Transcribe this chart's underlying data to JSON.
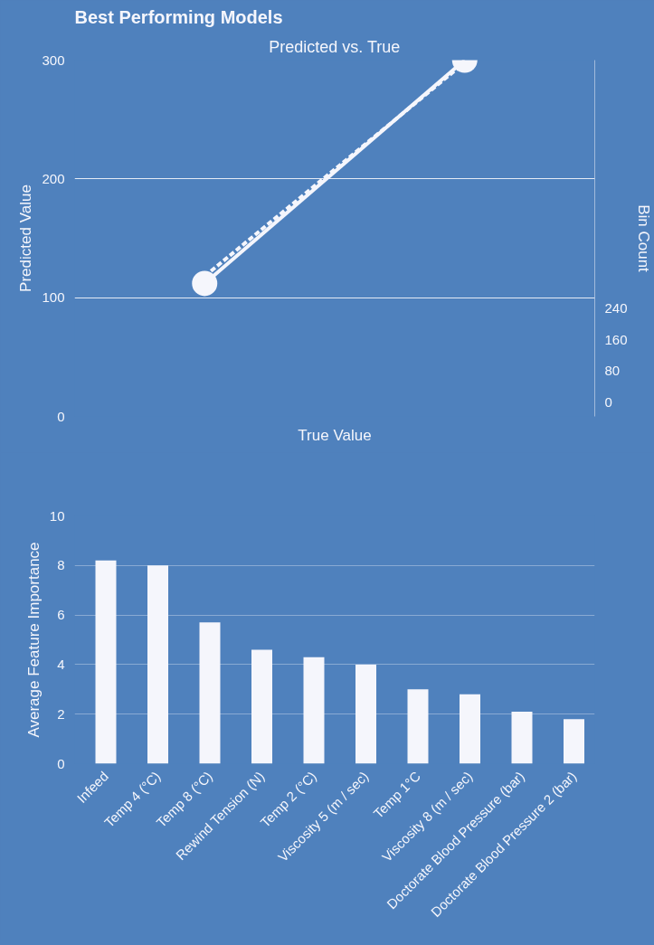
{
  "chart_data": [
    {
      "type": "line",
      "title": "Best Performing Models",
      "subtitle": "Predicted vs. True",
      "xlabel": "True Value",
      "ylabel": "Predicted Value",
      "y2label": "Bin Count",
      "categories": [
        null,
        null
      ],
      "series": [
        {
          "color": "#f5f6fc",
          "values": [
            118,
            298
          ],
          "line_style": "dashed",
          "marker": "none"
        },
        {
          "color": "#f5f6fc",
          "values": [
            112,
            300
          ],
          "line_style": "solid",
          "marker": "circle"
        }
      ],
      "ylim": [
        0,
        300
      ],
      "yticks": [
        0,
        100,
        200,
        300
      ],
      "y2lim": [
        -36,
        873
      ],
      "y2ticks": [
        0,
        80,
        160,
        240
      ],
      "grid": "y",
      "tick_labels": "y"
    },
    {
      "type": "bar",
      "ylabel": "Average Feature Importance",
      "categories": [
        "Infeed",
        "Temp 4 (°C)",
        "Temp 8 (°C)",
        "Rewind Tension (N)",
        "Temp 2 (°C)",
        "Viscosity 5 (m / sec)",
        "Temp 1°C",
        "Viscosity 8 (m / sec)",
        "Doctorate Blood Pressure (bar)",
        "Doctorate Blood Pressure 2 (bar)"
      ],
      "values": [
        8.2,
        8.0,
        5.7,
        4.6,
        4.3,
        4.0,
        3.0,
        2.8,
        2.1,
        1.8
      ],
      "color": "#f5f6fc",
      "ylim": [
        0,
        10
      ],
      "yticks": [
        0,
        2,
        4,
        6,
        8,
        10
      ],
      "grid": "y"
    }
  ]
}
